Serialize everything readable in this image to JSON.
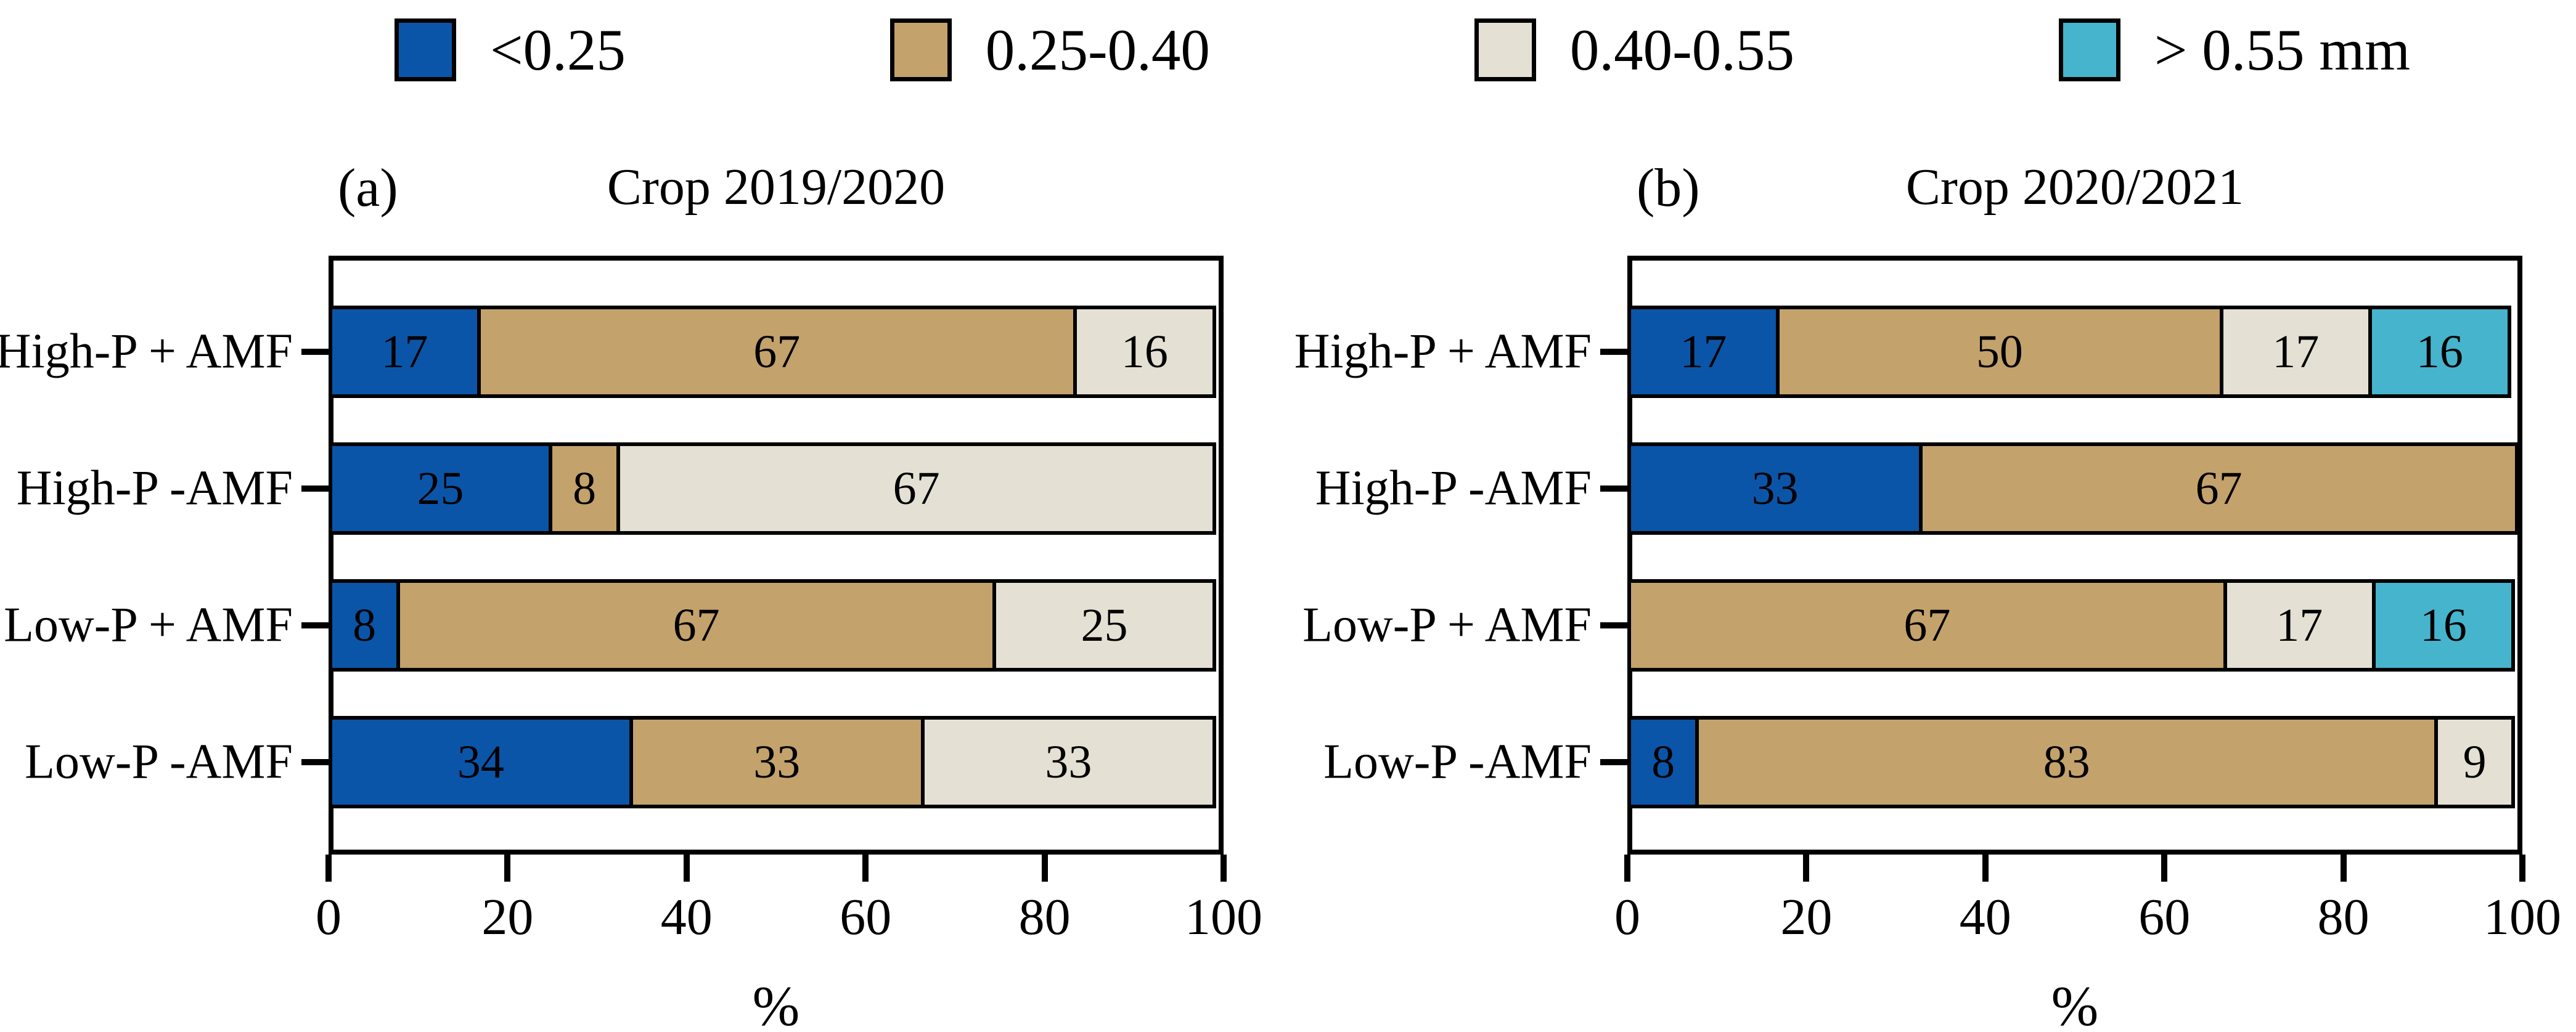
{
  "figure": {
    "background": "#ffffff"
  },
  "legend": {
    "items": [
      {
        "label": "<0.25",
        "color": "#0b55a8"
      },
      {
        "label": "0.25-0.40",
        "color": "#c4a26c"
      },
      {
        "label": "0.40-0.55",
        "color": "#e4e0d3"
      },
      {
        "label": "> 0.55 mm",
        "color": "#46b4cc"
      }
    ]
  },
  "chart_data": [
    {
      "type": "bar",
      "orientation": "horizontal",
      "stacked": true,
      "panel_tag": "(a)",
      "title": "Crop 2019/2020",
      "categories": [
        "High-P + AMF",
        "High-P -AMF",
        "Low-P + AMF",
        "Low-P -AMF"
      ],
      "series": [
        {
          "name": "<0.25",
          "color": "#0b55a8",
          "values": [
            17,
            25,
            8,
            34
          ]
        },
        {
          "name": "0.25-0.40",
          "color": "#c4a26c",
          "values": [
            67,
            8,
            67,
            33
          ]
        },
        {
          "name": "0.40-0.55",
          "color": "#e4e0d3",
          "values": [
            16,
            67,
            25,
            33
          ]
        },
        {
          "name": "> 0.55 mm",
          "color": "#46b4cc",
          "values": [
            0,
            0,
            0,
            0
          ]
        }
      ],
      "xlabel": "%",
      "xlim": [
        0,
        100
      ],
      "xticks": [
        0,
        20,
        40,
        60,
        80,
        100
      ],
      "value_labels": true,
      "legend_position": "top",
      "grid": false
    },
    {
      "type": "bar",
      "orientation": "horizontal",
      "stacked": true,
      "panel_tag": "(b)",
      "title": "Crop 2020/2021",
      "categories": [
        "High-P + AMF",
        "High-P -AMF",
        "Low-P + AMF",
        "Low-P -AMF"
      ],
      "series": [
        {
          "name": "<0.25",
          "color": "#0b55a8",
          "values": [
            17,
            33,
            0,
            8
          ]
        },
        {
          "name": "0.25-0.40",
          "color": "#c4a26c",
          "values": [
            50,
            67,
            67,
            83
          ]
        },
        {
          "name": "0.40-0.55",
          "color": "#e4e0d3",
          "values": [
            17,
            0,
            17,
            9
          ]
        },
        {
          "name": "> 0.55 mm",
          "color": "#46b4cc",
          "values": [
            16,
            0,
            16,
            0
          ]
        }
      ],
      "xlabel": "%",
      "xlim": [
        0,
        100
      ],
      "xticks": [
        0,
        20,
        40,
        60,
        80,
        100
      ],
      "value_labels": true,
      "legend_position": "top",
      "grid": false
    }
  ]
}
